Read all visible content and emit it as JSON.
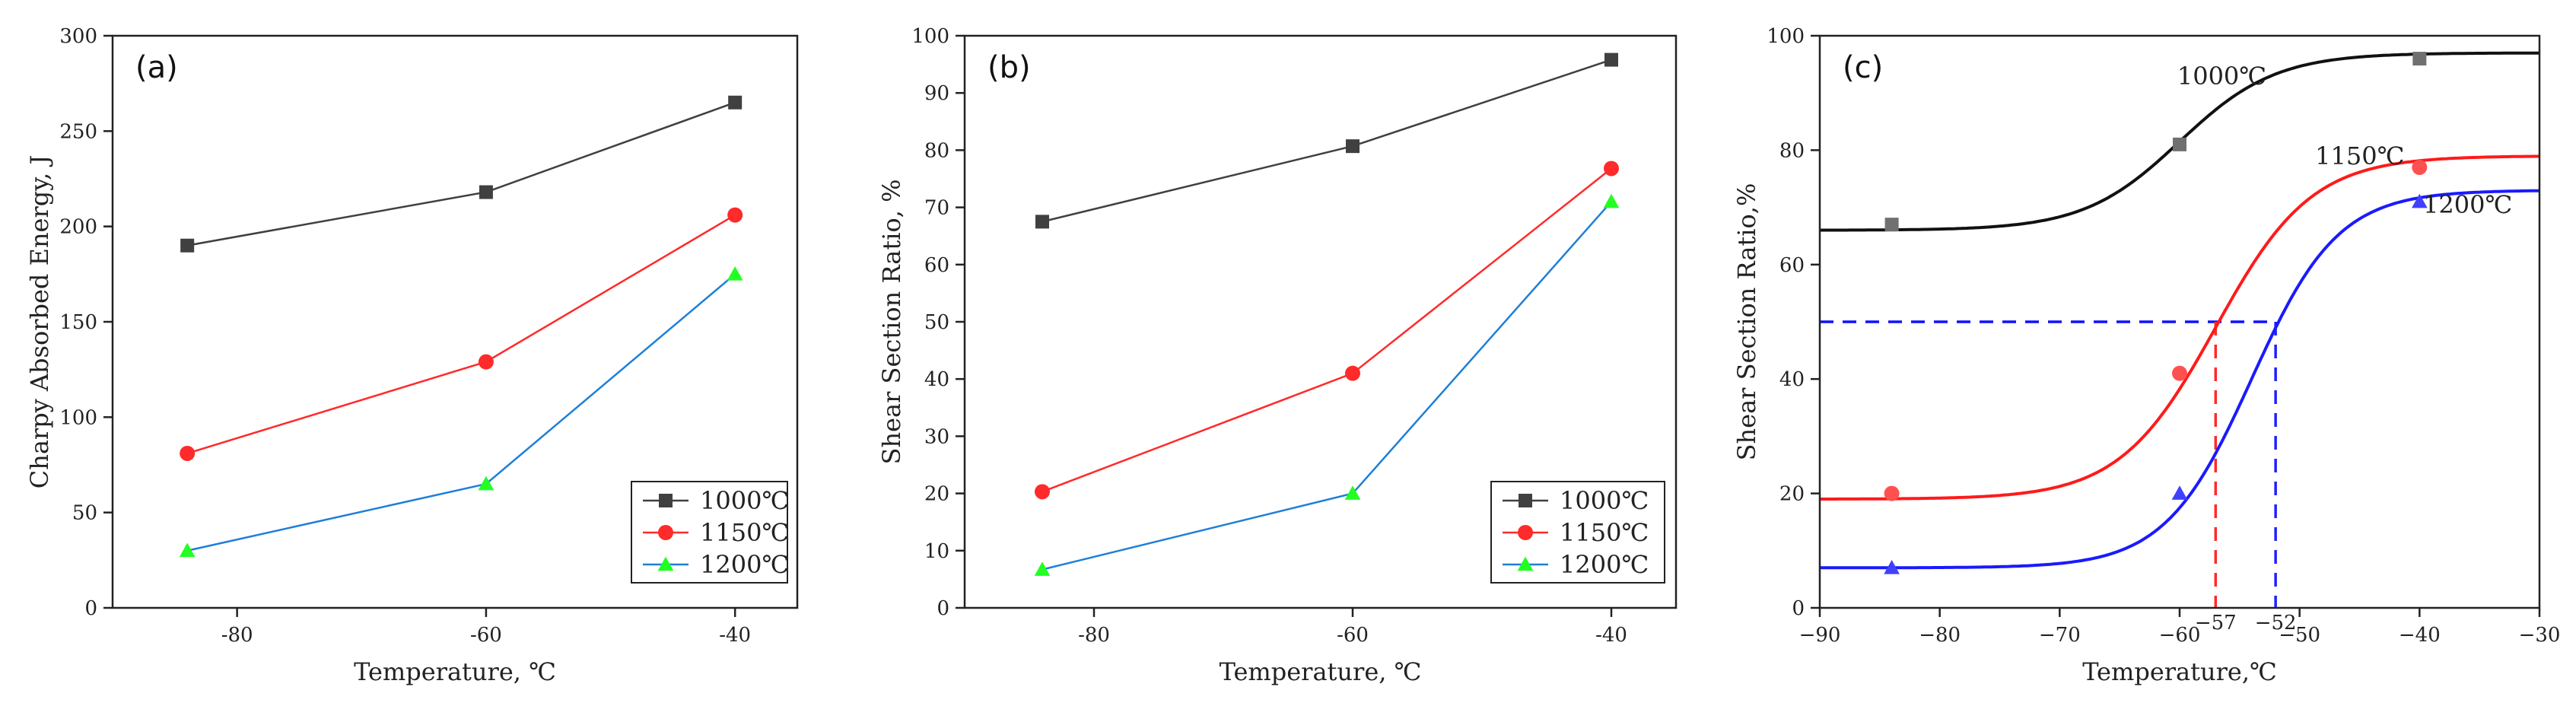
{
  "chart_data": [
    {
      "type": "line",
      "panel_label": "(a)",
      "xlabel": "Temperature, ℃",
      "ylabel": "Charpy Absorbed Energy, J",
      "xlim": [
        -90,
        -35
      ],
      "ylim": [
        0,
        300
      ],
      "xticks": [
        -80,
        -60,
        -40
      ],
      "xtick_labels": [
        "-80",
        "-60",
        "-40"
      ],
      "yticks": [
        0,
        50,
        100,
        150,
        200,
        250,
        300
      ],
      "ytick_labels": [
        "0",
        "50",
        "100",
        "150",
        "200",
        "250",
        "300"
      ],
      "legend_position": "bottom-right",
      "series": [
        {
          "name": "1000℃",
          "color": "#404040",
          "marker": "square",
          "x": [
            -84,
            -60,
            -40
          ],
          "y": [
            190,
            218,
            265
          ]
        },
        {
          "name": "1150℃",
          "color": "#ff2a2a",
          "marker": "circle",
          "x": [
            -84,
            -60,
            -40
          ],
          "y": [
            81,
            129,
            206
          ]
        },
        {
          "name": "1200℃",
          "color": "#1e7fd8",
          "marker": "triangle",
          "marker_color": "#22ff22",
          "x": [
            -84,
            -60,
            -40
          ],
          "y": [
            30,
            65,
            175
          ]
        }
      ]
    },
    {
      "type": "line",
      "panel_label": "(b)",
      "xlabel": "Temperature, ℃",
      "ylabel": "Shear Section Ratio, %",
      "xlim": [
        -90,
        -35
      ],
      "ylim": [
        0,
        100
      ],
      "xticks": [
        -80,
        -60,
        -40
      ],
      "xtick_labels": [
        "-80",
        "-60",
        "-40"
      ],
      "yticks": [
        0,
        10,
        20,
        30,
        40,
        50,
        60,
        70,
        80,
        90,
        100
      ],
      "ytick_labels": [
        "0",
        "10",
        "20",
        "30",
        "40",
        "50",
        "60",
        "70",
        "80",
        "90",
        "100"
      ],
      "legend_position": "bottom-right",
      "series": [
        {
          "name": "1000℃",
          "color": "#404040",
          "marker": "square",
          "x": [
            -84,
            -60,
            -40
          ],
          "y": [
            67.5,
            80.7,
            95.8
          ]
        },
        {
          "name": "1150℃",
          "color": "#ff2a2a",
          "marker": "circle",
          "x": [
            -84,
            -60,
            -40
          ],
          "y": [
            20.3,
            41,
            76.8
          ]
        },
        {
          "name": "1200℃",
          "color": "#1e7fd8",
          "marker": "triangle",
          "marker_color": "#22ff22",
          "x": [
            -84,
            -60,
            -40
          ],
          "y": [
            6.7,
            20,
            71
          ]
        }
      ]
    },
    {
      "type": "scatter",
      "panel_label": "(c)",
      "xlabel": "Temperature,℃",
      "ylabel": "Shear Section Ratio,%",
      "xlim": [
        -90,
        -30
      ],
      "ylim": [
        0,
        100
      ],
      "xticks": [
        -90,
        -80,
        -70,
        -60,
        -50,
        -40,
        -30
      ],
      "xtick_labels": [
        "−90",
        "−80",
        "−70",
        "−60",
        "−50",
        "−40",
        "−30"
      ],
      "yticks": [
        0,
        20,
        40,
        60,
        80,
        100
      ],
      "ytick_labels": [
        "0",
        "20",
        "40",
        "60",
        "80",
        "100"
      ],
      "fit": "boltzmann",
      "reference_line": {
        "y": 50,
        "style": "dashed",
        "color": "#1010ff"
      },
      "annotations": [
        {
          "text": "−57",
          "x": -57,
          "y": 50,
          "color": "#ff2a2a"
        },
        {
          "text": "−52",
          "x": -52,
          "y": 50,
          "color": "#2020ff"
        }
      ],
      "series": [
        {
          "name": "1000℃",
          "color": "#111111",
          "marker": "square",
          "marker_color": "#707070",
          "x": [
            -84,
            -60,
            -40
          ],
          "y": [
            67,
            81,
            96
          ],
          "fit_params": {
            "lower": 66,
            "upper": 97,
            "x0": -60,
            "width": 4
          }
        },
        {
          "name": "1150℃",
          "color": "#ff1a1a",
          "marker": "circle",
          "marker_color": "#ff5050",
          "x": [
            -84,
            -60,
            -40
          ],
          "y": [
            20,
            41,
            77
          ],
          "fit_params": {
            "lower": 19,
            "upper": 79,
            "x0": -57,
            "width": 4
          }
        },
        {
          "name": "1200℃",
          "color": "#1a1aff",
          "marker": "triangle",
          "marker_color": "#4040ff",
          "x": [
            -84,
            -60,
            -40
          ],
          "y": [
            7,
            20,
            71
          ],
          "fit_params": {
            "lower": 7,
            "upper": 73,
            "x0": -54,
            "width": 3.6
          }
        }
      ]
    }
  ]
}
